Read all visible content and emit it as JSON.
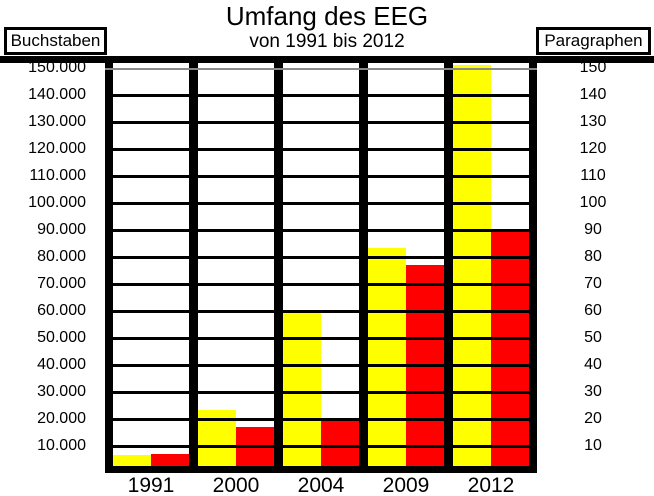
{
  "title": "Umfang des EEG",
  "subtitle": "von 1991 bis 2012",
  "legend": {
    "left_label": "Buchstaben",
    "right_label": "Paragraphen"
  },
  "colors": {
    "buchstaben": "#ffff00",
    "paragraphen": "#ff0000",
    "gridline": "#000000",
    "top_limit_line": "#8a8a8a",
    "frame": "#000000",
    "background": "#ffffff"
  },
  "axes": {
    "left_ticks": [
      "150.000",
      "140.000",
      "130.000",
      "120.000",
      "110.000",
      "100.000",
      "90.000",
      "80.000",
      "70.000",
      "60.000",
      "50.000",
      "40.000",
      "30.000",
      "20.000",
      "10.000"
    ],
    "right_ticks": [
      "150",
      "140",
      "130",
      "120",
      "110",
      "100",
      "90",
      "80",
      "70",
      "60",
      "50",
      "40",
      "30",
      "20",
      "10"
    ],
    "categories": [
      "1991",
      "2000",
      "2004",
      "2009",
      "2012"
    ]
  },
  "chart_data": {
    "type": "bar",
    "title": "Umfang des EEG",
    "subtitle": "von 1991 bis 2012",
    "categories": [
      "1991",
      "2000",
      "2004",
      "2009",
      "2012"
    ],
    "series": [
      {
        "name": "Buchstaben",
        "axis": "left",
        "color": "#ffff00",
        "values": [
          6500,
          23500,
          59500,
          83500,
          151000
        ]
      },
      {
        "name": "Paragraphen",
        "axis": "right",
        "color": "#ff0000",
        "values": [
          7,
          17,
          20,
          77,
          90
        ]
      }
    ],
    "left_axis": {
      "label": "Buchstaben",
      "min": 0,
      "max": 152000,
      "tick_step": 10000
    },
    "right_axis": {
      "label": "Paragraphen",
      "min": 0,
      "max": 152,
      "tick_step": 10
    },
    "grid": "horizontal, black lines every 10.000 / 10; gray limit line at 150.000 / 150",
    "legend_position": "top-left (Buchstaben, yellow) and top-right (Paragraphen, red)"
  }
}
